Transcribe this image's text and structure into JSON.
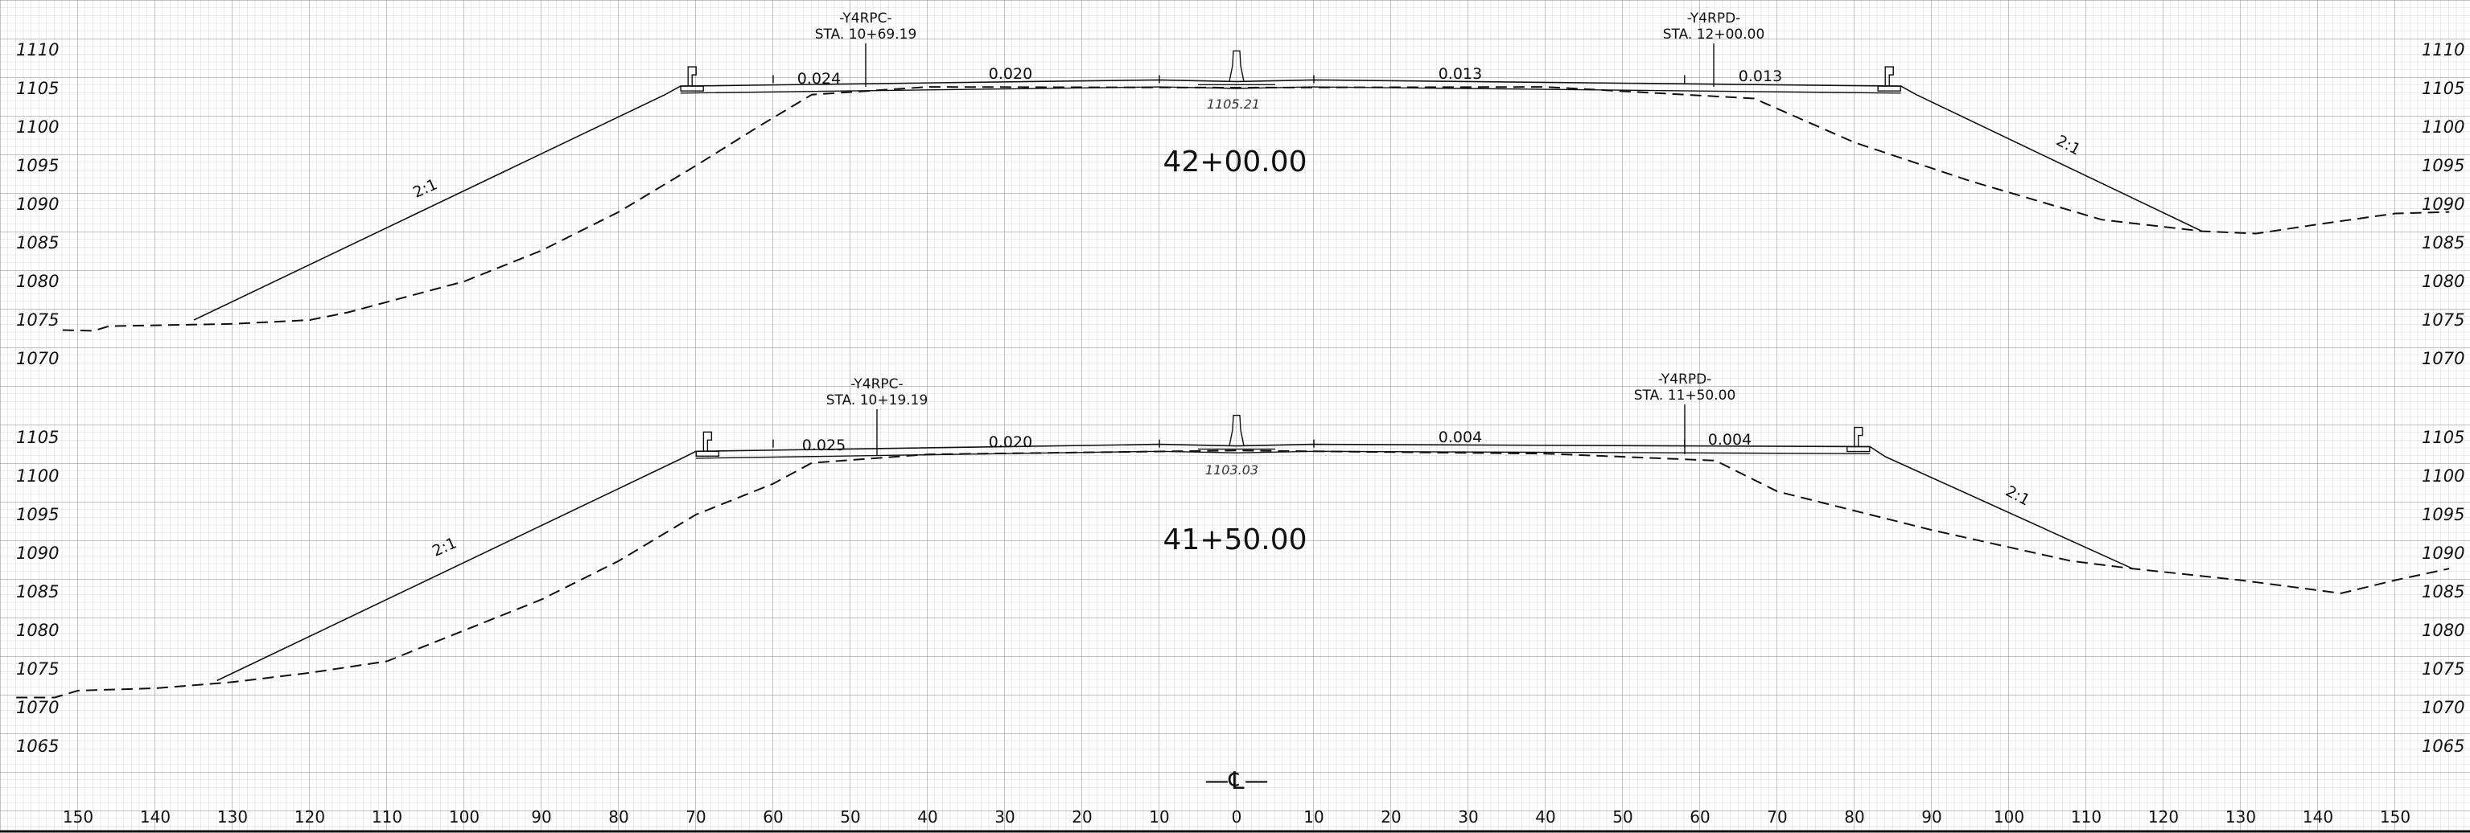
{
  "sheet": {
    "x_axis": {
      "ticks": [
        -150,
        -140,
        -130,
        -120,
        -110,
        -100,
        -90,
        -80,
        -70,
        -60,
        -50,
        -40,
        -30,
        -20,
        -10,
        0,
        10,
        20,
        30,
        40,
        50,
        60,
        70,
        80,
        90,
        100,
        110,
        120,
        130,
        140,
        150
      ],
      "tick_labels": [
        "150",
        "140",
        "130",
        "120",
        "110",
        "100",
        "90",
        "80",
        "70",
        "60",
        "50",
        "40",
        "30",
        "20",
        "10",
        "0",
        "10",
        "20",
        "30",
        "40",
        "50",
        "60",
        "70",
        "80",
        "90",
        "100",
        "110",
        "120",
        "130",
        "140",
        "150"
      ],
      "centerline_symbol": "—℄—"
    }
  },
  "sections": [
    {
      "station_label": "42+00.00",
      "elevation_ticks": [
        1110,
        1105,
        1100,
        1095,
        1090,
        1085,
        1080,
        1075,
        1070
      ],
      "elevation_labels": [
        "1110",
        "1105",
        "1100",
        "1095",
        "1090",
        "1085",
        "1080",
        "1075",
        "1070"
      ],
      "centerline_elevation": "1105.21",
      "slope_labels": [
        "0.024",
        "0.020",
        "0.013",
        "0.013"
      ],
      "side_slope_labels": [
        "2:1",
        "2:1"
      ],
      "left_control": {
        "name": "-Y4RPC-",
        "station": "STA. 10+69.19"
      },
      "right_control": {
        "name": "-Y4RPD-",
        "station": "STA. 12+00.00"
      },
      "design_profile": [
        [
          -135,
          1075
        ],
        [
          -74,
          1104.2
        ],
        [
          -72,
          1105.3
        ],
        [
          -10,
          1106.1
        ],
        [
          0,
          1105.9
        ],
        [
          10,
          1106.1
        ],
        [
          86,
          1105.3
        ],
        [
          88,
          1104.2
        ],
        [
          125,
          1086.5
        ]
      ],
      "ground_profile": [
        [
          -152,
          1073.7
        ],
        [
          -148,
          1073.6
        ],
        [
          -146,
          1074.2
        ],
        [
          -130,
          1074.5
        ],
        [
          -120,
          1075
        ],
        [
          -115,
          1076
        ],
        [
          -100,
          1080
        ],
        [
          -90,
          1084
        ],
        [
          -80,
          1089
        ],
        [
          -70,
          1095
        ],
        [
          -62,
          1100
        ],
        [
          -55,
          1104.2
        ],
        [
          -40,
          1105.2
        ],
        [
          0,
          1105.1
        ],
        [
          40,
          1105.2
        ],
        [
          67,
          1103.7
        ],
        [
          80,
          1098
        ],
        [
          95,
          1093
        ],
        [
          112,
          1088
        ],
        [
          125,
          1086.5
        ],
        [
          132,
          1086.2
        ],
        [
          140,
          1087.4
        ],
        [
          150,
          1088.8
        ],
        [
          157,
          1089
        ]
      ]
    },
    {
      "station_label": "41+50.00",
      "elevation_ticks": [
        1105,
        1100,
        1095,
        1090,
        1085,
        1080,
        1075,
        1070,
        1065
      ],
      "elevation_labels": [
        "1105",
        "1100",
        "1095",
        "1090",
        "1085",
        "1080",
        "1075",
        "1070",
        "1065"
      ],
      "centerline_elevation": "1103.03",
      "slope_labels": [
        "0.025",
        "0.020",
        "0.004",
        "0.004"
      ],
      "side_slope_labels": [
        "2:1",
        "2:1"
      ],
      "left_control": {
        "name": "-Y4RPC-",
        "station": "STA. 10+19.19"
      },
      "right_control": {
        "name": "-Y4RPD-",
        "station": "STA. 11+50.00"
      },
      "design_profile": [
        [
          -132,
          1073.5
        ],
        [
          -72,
          1102.2
        ],
        [
          -70,
          1103.2
        ],
        [
          -10,
          1104.1
        ],
        [
          0,
          1103.9
        ],
        [
          10,
          1104.1
        ],
        [
          82,
          1103.8
        ],
        [
          84,
          1102.5
        ],
        [
          116,
          1088
        ]
      ],
      "ground_profile": [
        [
          -158,
          1071.3
        ],
        [
          -153,
          1071.3
        ],
        [
          -150,
          1072.2
        ],
        [
          -140,
          1072.5
        ],
        [
          -130,
          1073.3
        ],
        [
          -120,
          1074.5
        ],
        [
          -110,
          1076
        ],
        [
          -100,
          1080
        ],
        [
          -90,
          1084
        ],
        [
          -80,
          1089
        ],
        [
          -70,
          1095
        ],
        [
          -60,
          1099
        ],
        [
          -55,
          1101.7
        ],
        [
          -40,
          1102.8
        ],
        [
          0,
          1103.3
        ],
        [
          40,
          1102.9
        ],
        [
          62,
          1102
        ],
        [
          70,
          1098
        ],
        [
          90,
          1093
        ],
        [
          108,
          1089
        ],
        [
          116,
          1088
        ],
        [
          130,
          1086.5
        ],
        [
          143,
          1084.8
        ],
        [
          150,
          1086.5
        ],
        [
          157,
          1088
        ]
      ]
    }
  ]
}
